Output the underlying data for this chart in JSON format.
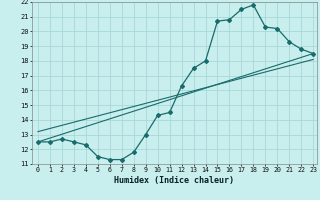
{
  "xlabel": "Humidex (Indice chaleur)",
  "bg_color": "#c8eeee",
  "grid_color": "#a8d8d8",
  "line_color": "#1a6b6b",
  "xmin": 0,
  "xmax": 23,
  "ymin": 11,
  "ymax": 22,
  "curve1_x": [
    0,
    1,
    2,
    3,
    4,
    5,
    6,
    7,
    8,
    9,
    10,
    11,
    12,
    13,
    14,
    15,
    16,
    17,
    18,
    19,
    20,
    21,
    22,
    23
  ],
  "curve1_y": [
    12.5,
    12.5,
    12.7,
    12.5,
    12.3,
    11.5,
    11.3,
    11.3,
    11.8,
    13.0,
    14.3,
    14.5,
    16.3,
    17.5,
    18.0,
    20.7,
    20.8,
    21.5,
    21.8,
    20.3,
    20.2,
    19.3,
    18.8,
    18.5
  ],
  "curve2_x": [
    0,
    23
  ],
  "curve2_y": [
    12.5,
    18.5
  ],
  "curve3_x": [
    0,
    23
  ],
  "curve3_y": [
    13.2,
    18.1
  ],
  "yticks": [
    11,
    12,
    13,
    14,
    15,
    16,
    17,
    18,
    19,
    20,
    21,
    22
  ]
}
